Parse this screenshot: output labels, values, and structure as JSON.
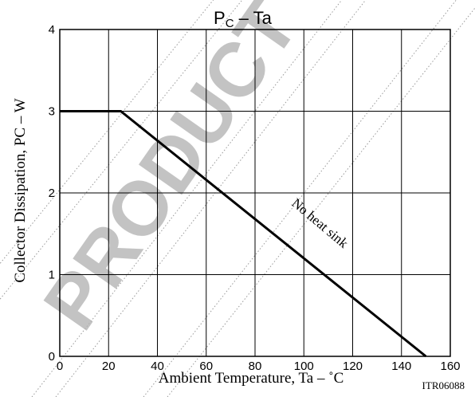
{
  "chart_data": {
    "type": "line",
    "title": {
      "main": "P",
      "sub": "C",
      "rest": " – Ta"
    },
    "xlabel": "Ambient Temperature, Ta  –  ˚C",
    "ylabel": "Collector Dissipation, PC  –  W",
    "xlim": [
      0,
      160
    ],
    "ylim": [
      0,
      4
    ],
    "x_ticks": [
      "0",
      "20",
      "40",
      "60",
      "80",
      "100",
      "120",
      "140",
      "160"
    ],
    "y_ticks": [
      "0",
      "1",
      "2",
      "3",
      "4"
    ],
    "grid": true,
    "series": [
      {
        "name": "No heat sink",
        "x": [
          0,
          25,
          150
        ],
        "y": [
          3,
          3,
          0
        ]
      }
    ],
    "annotations": [
      {
        "text": "No heat sink",
        "x": 96,
        "y": 1.8
      }
    ],
    "footnote": "ITR06088",
    "watermark": "PRODUCT"
  }
}
